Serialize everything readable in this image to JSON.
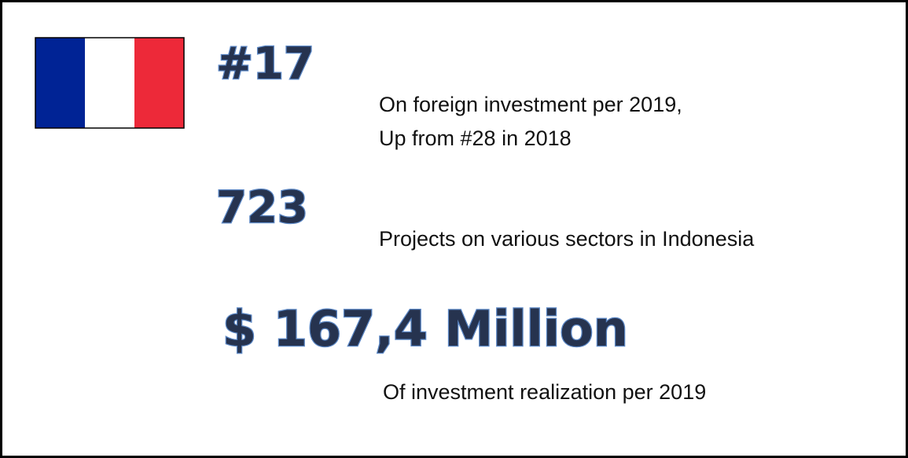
{
  "rank": {
    "value": "#17",
    "lines": [
      "On foreign investment per 2019,",
      "Up from #28 in 2018"
    ]
  },
  "projects": {
    "value": "723",
    "caption": "Projects on various sectors in Indonesia"
  },
  "investment": {
    "value": "$ 167,4 Million",
    "caption": "Of investment realization per 2019"
  }
}
